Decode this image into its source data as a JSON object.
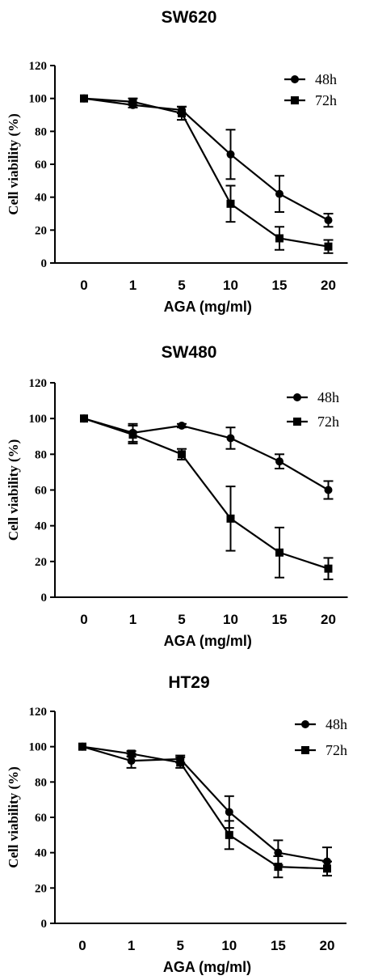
{
  "chart_data": [
    {
      "type": "line",
      "title": "SW620",
      "xlabel": "AGA (mg/ml)",
      "ylabel": "Cell viability  (%)",
      "categories": [
        "0",
        "1",
        "5",
        "10",
        "15",
        "20"
      ],
      "ylim": [
        0,
        120
      ],
      "yticks": [
        "0",
        "20",
        "40",
        "60",
        "80",
        "100",
        "120"
      ],
      "legend_position": "top-right",
      "series": [
        {
          "name": "48h",
          "marker": "circle",
          "values": [
            100,
            96,
            93,
            66,
            42,
            26
          ],
          "errors": [
            0,
            1.5,
            2,
            15,
            11,
            4
          ]
        },
        {
          "name": "72h",
          "marker": "square",
          "values": [
            100,
            98,
            91,
            36,
            15,
            10
          ],
          "errors": [
            0,
            2,
            4,
            11,
            7,
            4
          ]
        }
      ]
    },
    {
      "type": "line",
      "title": "SW480",
      "xlabel": "AGA (mg/ml)",
      "ylabel": "Cell viability  (%)",
      "categories": [
        "0",
        "1",
        "5",
        "10",
        "15",
        "20"
      ],
      "ylim": [
        0,
        120
      ],
      "yticks": [
        "0",
        "20",
        "40",
        "60",
        "80",
        "100",
        "120"
      ],
      "legend_position": "top-right",
      "series": [
        {
          "name": "48h",
          "marker": "circle",
          "values": [
            100,
            92,
            96,
            89,
            76,
            60
          ],
          "errors": [
            0,
            5,
            1,
            6,
            4,
            5
          ]
        },
        {
          "name": "72h",
          "marker": "square",
          "values": [
            100,
            91,
            80,
            44,
            25,
            16
          ],
          "errors": [
            0,
            5,
            3,
            18,
            14,
            6
          ]
        }
      ]
    },
    {
      "type": "line",
      "title": "HT29",
      "xlabel": "AGA (mg/ml)",
      "ylabel": "Cell viability  (%)",
      "categories": [
        "0",
        "1",
        "5",
        "10",
        "15",
        "20"
      ],
      "ylim": [
        0,
        120
      ],
      "yticks": [
        "0",
        "20",
        "40",
        "60",
        "80",
        "100",
        "120"
      ],
      "legend_position": "top-right",
      "series": [
        {
          "name": "48h",
          "marker": "circle",
          "values": [
            100,
            92,
            93,
            63,
            40,
            35
          ],
          "errors": [
            0,
            4,
            2,
            9,
            7,
            8
          ]
        },
        {
          "name": "72h",
          "marker": "square",
          "values": [
            100,
            96,
            91,
            50,
            32,
            31
          ],
          "errors": [
            0,
            1.5,
            3,
            8,
            6,
            4
          ]
        }
      ]
    }
  ]
}
